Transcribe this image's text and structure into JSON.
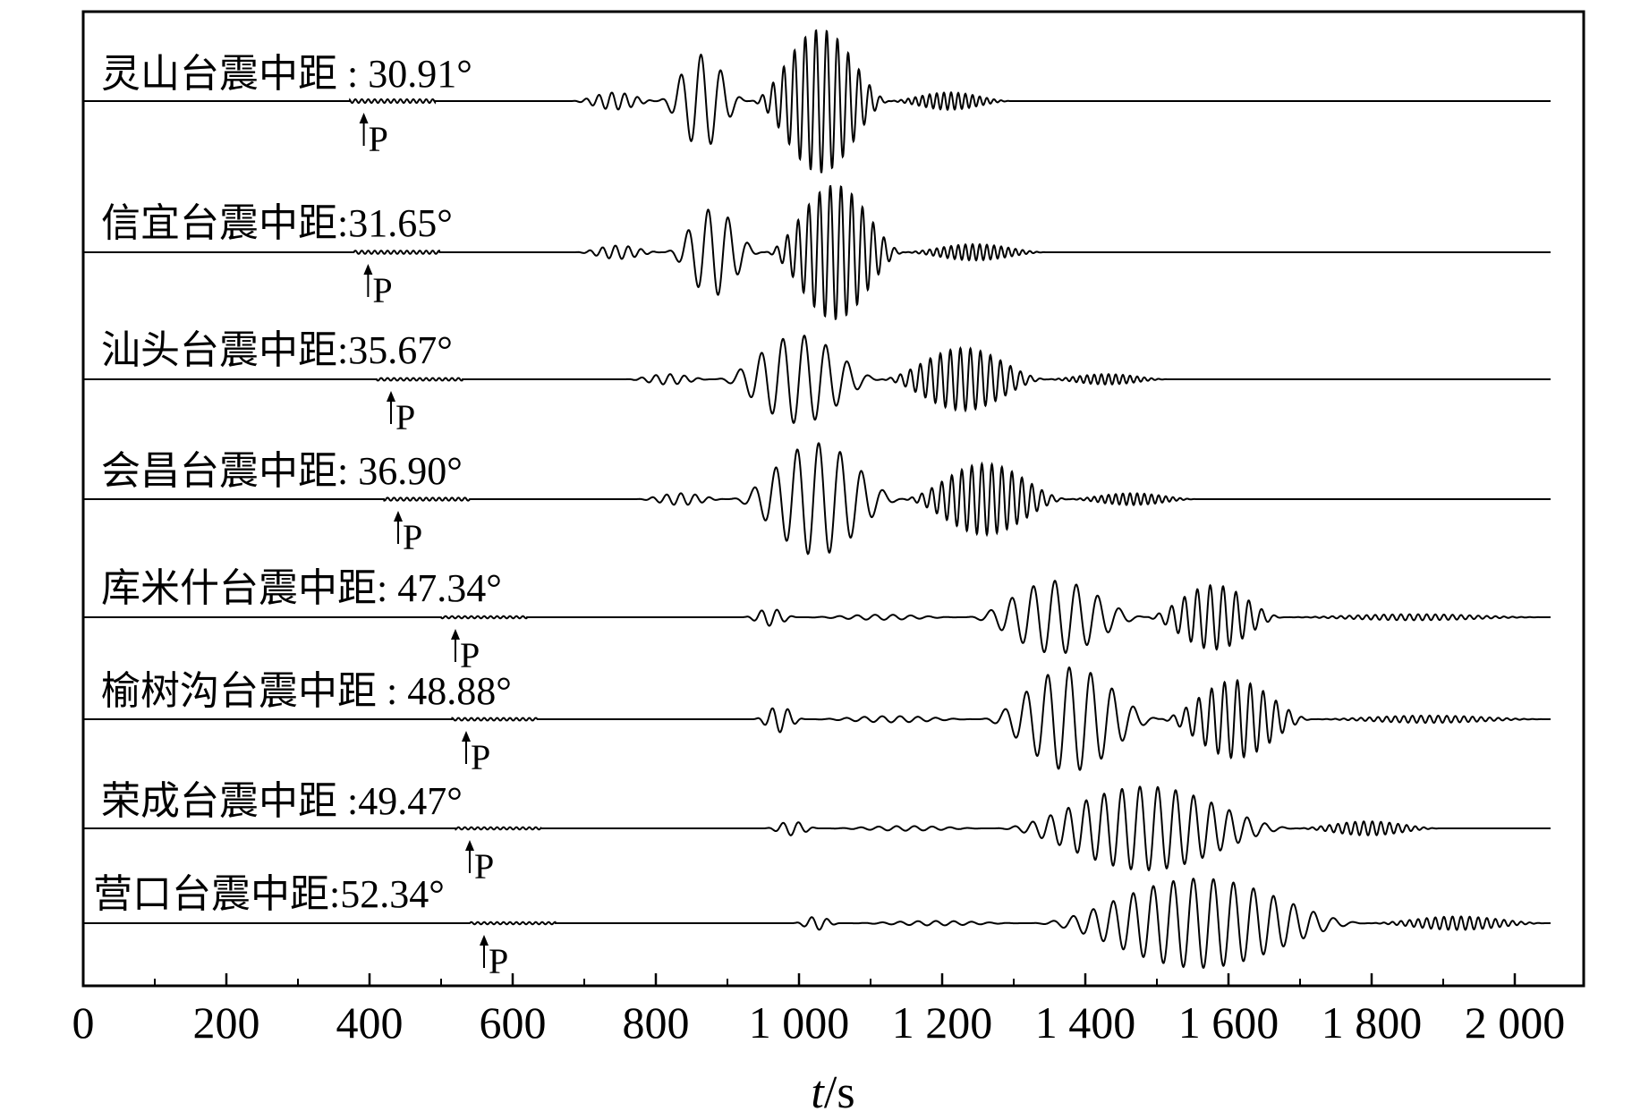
{
  "chart_data": {
    "type": "line",
    "title": "",
    "xlabel": "t/s",
    "xlabel_parts": {
      "var": "t",
      "unit": "/s"
    },
    "ylabel": "",
    "xlim": [
      0,
      2100
    ],
    "xticks": [
      0,
      200,
      400,
      600,
      800,
      1000,
      1200,
      1400,
      1600,
      1800,
      2000
    ],
    "xtick_labels": [
      "0",
      "200",
      "400",
      "600",
      "800",
      "1 000",
      "1 200",
      "1 400",
      "1 600",
      "1 800",
      "2 000"
    ],
    "grid": false,
    "legend": "none",
    "trace_end_s": 2050,
    "p_marker_label": "P",
    "series": [
      {
        "label": "灵山台震中距 : 30.91°",
        "p_arrival_s": 372,
        "phases": [
          {
            "t0": 680,
            "t1": 805,
            "amp": 0.12,
            "period": 18
          },
          {
            "t0": 800,
            "t1": 930,
            "amp": 0.65,
            "period": 28
          },
          {
            "t0": 930,
            "t1": 1130,
            "amp": 1.0,
            "period": 15
          },
          {
            "t0": 1120,
            "t1": 1300,
            "amp": 0.12,
            "period": 10
          }
        ]
      },
      {
        "label": "信宜台震中距:31.65°",
        "p_arrival_s": 378,
        "phases": [
          {
            "t0": 685,
            "t1": 810,
            "amp": 0.1,
            "period": 18
          },
          {
            "t0": 810,
            "t1": 950,
            "amp": 0.65,
            "period": 28
          },
          {
            "t0": 950,
            "t1": 1150,
            "amp": 1.0,
            "period": 15
          },
          {
            "t0": 1140,
            "t1": 1350,
            "amp": 0.12,
            "period": 10
          }
        ]
      },
      {
        "label": "汕头台震中距:35.67°",
        "p_arrival_s": 410,
        "phases": [
          {
            "t0": 755,
            "t1": 880,
            "amp": 0.1,
            "period": 20
          },
          {
            "t0": 880,
            "t1": 1120,
            "amp": 0.85,
            "period": 30
          },
          {
            "t0": 1110,
            "t1": 1350,
            "amp": 0.6,
            "period": 14
          },
          {
            "t0": 1340,
            "t1": 1520,
            "amp": 0.1,
            "period": 10
          }
        ]
      },
      {
        "label": "会昌台震中距: 36.90°",
        "p_arrival_s": 420,
        "phases": [
          {
            "t0": 770,
            "t1": 900,
            "amp": 0.1,
            "period": 20
          },
          {
            "t0": 900,
            "t1": 1150,
            "amp": 0.95,
            "period": 30
          },
          {
            "t0": 1140,
            "t1": 1380,
            "amp": 0.6,
            "period": 14
          },
          {
            "t0": 1370,
            "t1": 1560,
            "amp": 0.1,
            "period": 10
          }
        ]
      },
      {
        "label": "库米什台震中距: 47.34°",
        "p_arrival_s": 500,
        "phases": [
          {
            "t0": 920,
            "t1": 1000,
            "amp": 0.2,
            "period": 22
          },
          {
            "t0": 1000,
            "t1": 1230,
            "amp": 0.06,
            "period": 25
          },
          {
            "t0": 1230,
            "t1": 1490,
            "amp": 0.85,
            "period": 30
          },
          {
            "t0": 1480,
            "t1": 1680,
            "amp": 0.75,
            "period": 18
          },
          {
            "t0": 1670,
            "t1": 2050,
            "amp": 0.07,
            "period": 12
          }
        ]
      },
      {
        "label": "榆树沟台震中距 : 48.88°",
        "p_arrival_s": 515,
        "phases": [
          {
            "t0": 935,
            "t1": 1010,
            "amp": 0.25,
            "period": 22
          },
          {
            "t0": 1010,
            "t1": 1250,
            "amp": 0.06,
            "period": 25
          },
          {
            "t0": 1250,
            "t1": 1510,
            "amp": 1.0,
            "period": 30
          },
          {
            "t0": 1500,
            "t1": 1720,
            "amp": 0.75,
            "period": 18
          },
          {
            "t0": 1710,
            "t1": 2050,
            "amp": 0.07,
            "period": 12
          }
        ]
      },
      {
        "label": "荣成台震中距 :49.47°",
        "p_arrival_s": 520,
        "phases": [
          {
            "t0": 950,
            "t1": 1030,
            "amp": 0.15,
            "period": 22
          },
          {
            "t0": 1030,
            "t1": 1270,
            "amp": 0.05,
            "period": 25
          },
          {
            "t0": 1270,
            "t1": 1700,
            "amp": 0.9,
            "period": 25
          },
          {
            "t0": 1690,
            "t1": 1900,
            "amp": 0.15,
            "period": 12
          }
        ]
      },
      {
        "label": "营口台震中距:52.34°",
        "p_arrival_s": 540,
        "phases": [
          {
            "t0": 990,
            "t1": 1060,
            "amp": 0.15,
            "period": 22
          },
          {
            "t0": 1060,
            "t1": 1320,
            "amp": 0.05,
            "period": 25
          },
          {
            "t0": 1320,
            "t1": 1800,
            "amp": 1.0,
            "period": 28
          },
          {
            "t0": 1790,
            "t1": 2050,
            "amp": 0.15,
            "period": 12
          }
        ]
      }
    ]
  }
}
